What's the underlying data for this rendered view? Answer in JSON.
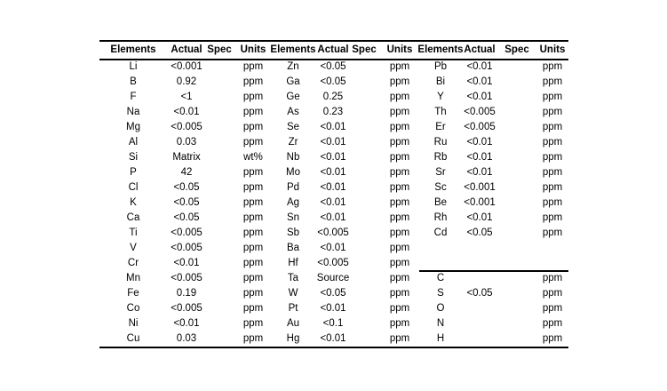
{
  "header": [
    "Elements",
    "Actual",
    "Spec",
    "Units",
    "Elements",
    "Actual",
    "Spec",
    "Units",
    "Elements",
    "Actual",
    "Spec",
    "Units"
  ],
  "rows": [
    [
      "Li",
      "<0.001",
      "",
      "ppm",
      "Zn",
      "<0.05",
      "",
      "ppm",
      "Pb",
      "<0.01",
      "",
      "ppm"
    ],
    [
      "B",
      "0.92",
      "",
      "ppm",
      "Ga",
      "<0.05",
      "",
      "ppm",
      "Bi",
      "<0.01",
      "",
      "ppm"
    ],
    [
      "F",
      "<1",
      "",
      "ppm",
      "Ge",
      "0.25",
      "",
      "ppm",
      "Y",
      "<0.01",
      "",
      "ppm"
    ],
    [
      "Na",
      "<0.01",
      "",
      "ppm",
      "As",
      "0.23",
      "",
      "ppm",
      "Th",
      "<0.005",
      "",
      "ppm"
    ],
    [
      "Mg",
      "<0.005",
      "",
      "ppm",
      "Se",
      "<0.01",
      "",
      "ppm",
      "Er",
      "<0.005",
      "",
      "ppm"
    ],
    [
      "Al",
      "0.03",
      "",
      "ppm",
      "Zr",
      "<0.01",
      "",
      "ppm",
      "Ru",
      "<0.01",
      "",
      "ppm"
    ],
    [
      "Si",
      "Matrix",
      "",
      "wt%",
      "Nb",
      "<0.01",
      "",
      "ppm",
      "Rb",
      "<0.01",
      "",
      "ppm"
    ],
    [
      "P",
      "42",
      "",
      "ppm",
      "Mo",
      "<0.01",
      "",
      "ppm",
      "Sr",
      "<0.01",
      "",
      "ppm"
    ],
    [
      "Cl",
      "<0.05",
      "",
      "ppm",
      "Pd",
      "<0.01",
      "",
      "ppm",
      "Sc",
      "<0.001",
      "",
      "ppm"
    ],
    [
      "K",
      "<0.05",
      "",
      "ppm",
      "Ag",
      "<0.01",
      "",
      "ppm",
      "Be",
      "<0.001",
      "",
      "ppm"
    ],
    [
      "Ca",
      "<0.05",
      "",
      "ppm",
      "Sn",
      "<0.01",
      "",
      "ppm",
      "Rh",
      "<0.01",
      "",
      "ppm"
    ],
    [
      "Ti",
      "<0.005",
      "",
      "ppm",
      "Sb",
      "<0.005",
      "",
      "ppm",
      "Cd",
      "<0.05",
      "",
      "ppm"
    ],
    [
      "V",
      "<0.005",
      "",
      "ppm",
      "Ba",
      "<0.01",
      "",
      "ppm",
      "",
      "",
      "",
      ""
    ],
    [
      "Cr",
      "<0.01",
      "",
      "ppm",
      "Hf",
      "<0.005",
      "",
      "ppm",
      "",
      "",
      "",
      ""
    ],
    [
      "Mn",
      "<0.005",
      "",
      "ppm",
      "Ta",
      "Source",
      "",
      "ppm",
      "C",
      "",
      "",
      "ppm"
    ],
    [
      "Fe",
      "0.19",
      "",
      "ppm",
      "W",
      "<0.05",
      "",
      "ppm",
      "S",
      "<0.05",
      "",
      "ppm"
    ],
    [
      "Co",
      "<0.005",
      "",
      "ppm",
      "Pt",
      "<0.01",
      "",
      "ppm",
      "O",
      "",
      "",
      "ppm"
    ],
    [
      "Ni",
      "<0.01",
      "",
      "ppm",
      "Au",
      "<0.1",
      "",
      "ppm",
      "N",
      "",
      "",
      "ppm"
    ],
    [
      "Cu",
      "0.03",
      "",
      "ppm",
      "Hg",
      "<0.01",
      "",
      "ppm",
      "H",
      "",
      "",
      "ppm"
    ]
  ]
}
